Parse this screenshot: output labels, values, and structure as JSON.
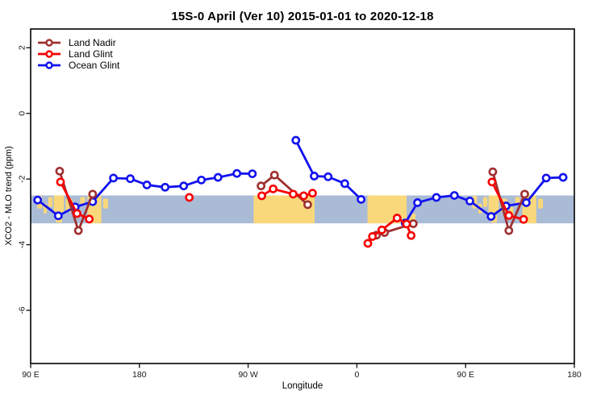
{
  "chart_data": {
    "type": "line",
    "title": "15S-0 April (Ver 10)   2015-01-01 to 2020-12-18",
    "xlabel": "Longitude",
    "ylabel": "XCO2 - MLO trend (ppm)",
    "xlim": [
      90,
      540
    ],
    "ylim": [
      -7.62,
      2.57
    ],
    "x_ticks": [
      {
        "v": 90,
        "label": "90 E"
      },
      {
        "v": 180,
        "label": "180"
      },
      {
        "v": 270,
        "label": "90 W"
      },
      {
        "v": 360,
        "label": "0"
      },
      {
        "v": 450,
        "label": "90 E"
      },
      {
        "v": 540,
        "label": "180"
      }
    ],
    "y_ticks": [
      {
        "v": 2,
        "label": "2"
      },
      {
        "v": 0,
        "label": "0"
      },
      {
        "v": -2,
        "label": "-2"
      },
      {
        "v": -4,
        "label": "-4"
      },
      {
        "v": -6,
        "label": "-6"
      }
    ],
    "axis_color": "#1a1a1a",
    "marker": "open-circle",
    "band": {
      "from": -2.5,
      "to": -3.35,
      "color": "#AABBD6"
    },
    "land": {
      "color": "#F9D87C",
      "segments": [
        [
          95.5,
          99.5,
          -2.52,
          -2.9
        ],
        [
          100.5,
          103.5,
          -2.75,
          -3.05
        ],
        [
          104.5,
          108,
          -2.55,
          -2.85
        ],
        [
          109,
          117.5,
          -2.5,
          -3.05
        ],
        [
          111,
          116,
          -3.1,
          -3.33
        ],
        [
          119,
          124.5,
          -2.6,
          -3.0
        ],
        [
          126.5,
          129.5,
          -2.85,
          -3.15
        ],
        [
          131,
          135,
          -2.55,
          -2.8
        ],
        [
          137,
          148.5,
          -2.5,
          -3.35
        ],
        [
          150,
          154,
          -2.6,
          -2.9
        ],
        [
          274.5,
          325,
          -2.5,
          -3.35
        ],
        [
          368.8,
          401.2,
          -2.5,
          -3.35
        ],
        [
          403.5,
          408.5,
          -3.05,
          -3.35
        ],
        [
          455.5,
          459.5,
          -2.52,
          -2.9
        ],
        [
          460.5,
          463.5,
          -2.75,
          -3.05
        ],
        [
          464.5,
          468,
          -2.55,
          -2.85
        ],
        [
          469,
          477.5,
          -2.5,
          -3.05
        ],
        [
          471,
          476,
          -3.1,
          -3.33
        ],
        [
          479,
          484.5,
          -2.6,
          -3.0
        ],
        [
          486.5,
          489.5,
          -2.85,
          -3.15
        ],
        [
          491,
          495,
          -2.55,
          -2.8
        ],
        [
          497,
          508.5,
          -2.5,
          -3.35
        ],
        [
          510,
          514,
          -2.6,
          -2.9
        ]
      ]
    },
    "series": [
      {
        "name": "Land Nadir",
        "color": "#9E3030",
        "segments": [
          [
            [
              114.0,
              -1.76
            ],
            [
              129.5,
              -3.57
            ],
            [
              141.3,
              -2.46
            ]
          ],
          [
            [
              280.7,
              -2.21
            ],
            [
              291.8,
              -1.88
            ],
            [
              319.3,
              -2.78
            ]
          ],
          [
            [
              376.2,
              -3.71
            ],
            [
              382.9,
              -3.63
            ],
            [
              406.7,
              -3.36
            ]
          ],
          [
            [
              472.5,
              -1.78
            ],
            [
              485.8,
              -3.57
            ],
            [
              498.9,
              -2.46
            ]
          ]
        ]
      },
      {
        "name": "Land Glint",
        "color": "#F80000",
        "segments": [
          [
            [
              114.7,
              -2.09
            ],
            [
              128.4,
              -3.05
            ],
            [
              138.5,
              -3.22
            ]
          ],
          [
            [
              221.3,
              -2.56
            ]
          ],
          [
            [
              281.3,
              -2.51
            ],
            [
              290.7,
              -2.3
            ],
            [
              307.3,
              -2.46
            ],
            [
              316.0,
              -2.51
            ],
            [
              323.3,
              -2.43
            ]
          ],
          [
            [
              369.1,
              -3.96
            ],
            [
              372.9,
              -3.75
            ],
            [
              380.7,
              -3.55
            ],
            [
              393.3,
              -3.19
            ],
            [
              401.1,
              -3.37
            ],
            [
              404.9,
              -3.72
            ]
          ],
          [
            [
              471.8,
              -2.09
            ],
            [
              485.8,
              -3.11
            ],
            [
              498.0,
              -3.23
            ]
          ]
        ]
      },
      {
        "name": "Ocean Glint",
        "color": "#1212EE",
        "segments": [
          [
            [
              95.8,
              -2.64
            ],
            [
              112.9,
              -3.12
            ],
            [
              126.9,
              -2.85
            ],
            [
              141.3,
              -2.69
            ],
            [
              158.5,
              -1.97
            ],
            [
              172.5,
              -1.99
            ],
            [
              186.2,
              -2.18
            ],
            [
              201.3,
              -2.25
            ],
            [
              216.7,
              -2.21
            ],
            [
              231.3,
              -2.03
            ],
            [
              245.1,
              -1.95
            ],
            [
              260.7,
              -1.83
            ],
            [
              273.5,
              -1.84
            ]
          ],
          [
            [
              309.5,
              -0.82
            ],
            [
              324.7,
              -1.91
            ],
            [
              336.2,
              -1.93
            ],
            [
              350.0,
              -2.14
            ],
            [
              363.5,
              -2.62
            ]
          ],
          [
            [
              400.0,
              -3.34
            ],
            [
              410.2,
              -2.72
            ],
            [
              425.8,
              -2.56
            ],
            [
              440.7,
              -2.5
            ],
            [
              453.5,
              -2.67
            ],
            [
              471.1,
              -3.14
            ],
            [
              483.5,
              -2.82
            ],
            [
              500.2,
              -2.72
            ],
            [
              516.7,
              -1.97
            ],
            [
              530.7,
              -1.95
            ]
          ]
        ]
      }
    ],
    "legend": {
      "position": "top-left",
      "items": [
        "Land Nadir",
        "Land Glint",
        "Ocean Glint"
      ]
    }
  }
}
